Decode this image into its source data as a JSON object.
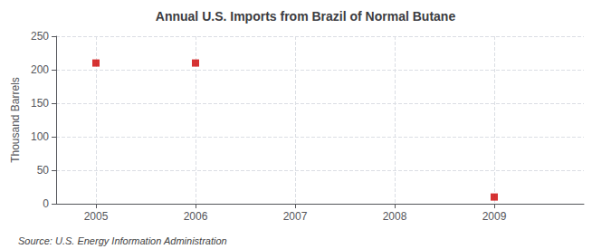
{
  "chart_data": {
    "type": "scatter",
    "title": "Annual U.S. Imports from Brazil of Normal Butane",
    "ylabel": "Thousand Barrels",
    "annotations": [
      "Source: U.S. Energy Information Administration"
    ],
    "x": [
      2005,
      2006,
      2009
    ],
    "values": [
      210,
      210,
      10
    ],
    "color": "#cc0000",
    "marker": "square",
    "xlim": [
      2004.6,
      2009.9
    ],
    "xticks": [
      2005,
      2006,
      2007,
      2008,
      2009
    ],
    "ylim": [
      0,
      250
    ],
    "yticks": [
      0,
      50,
      100,
      150,
      200,
      250
    ],
    "grid": true
  }
}
